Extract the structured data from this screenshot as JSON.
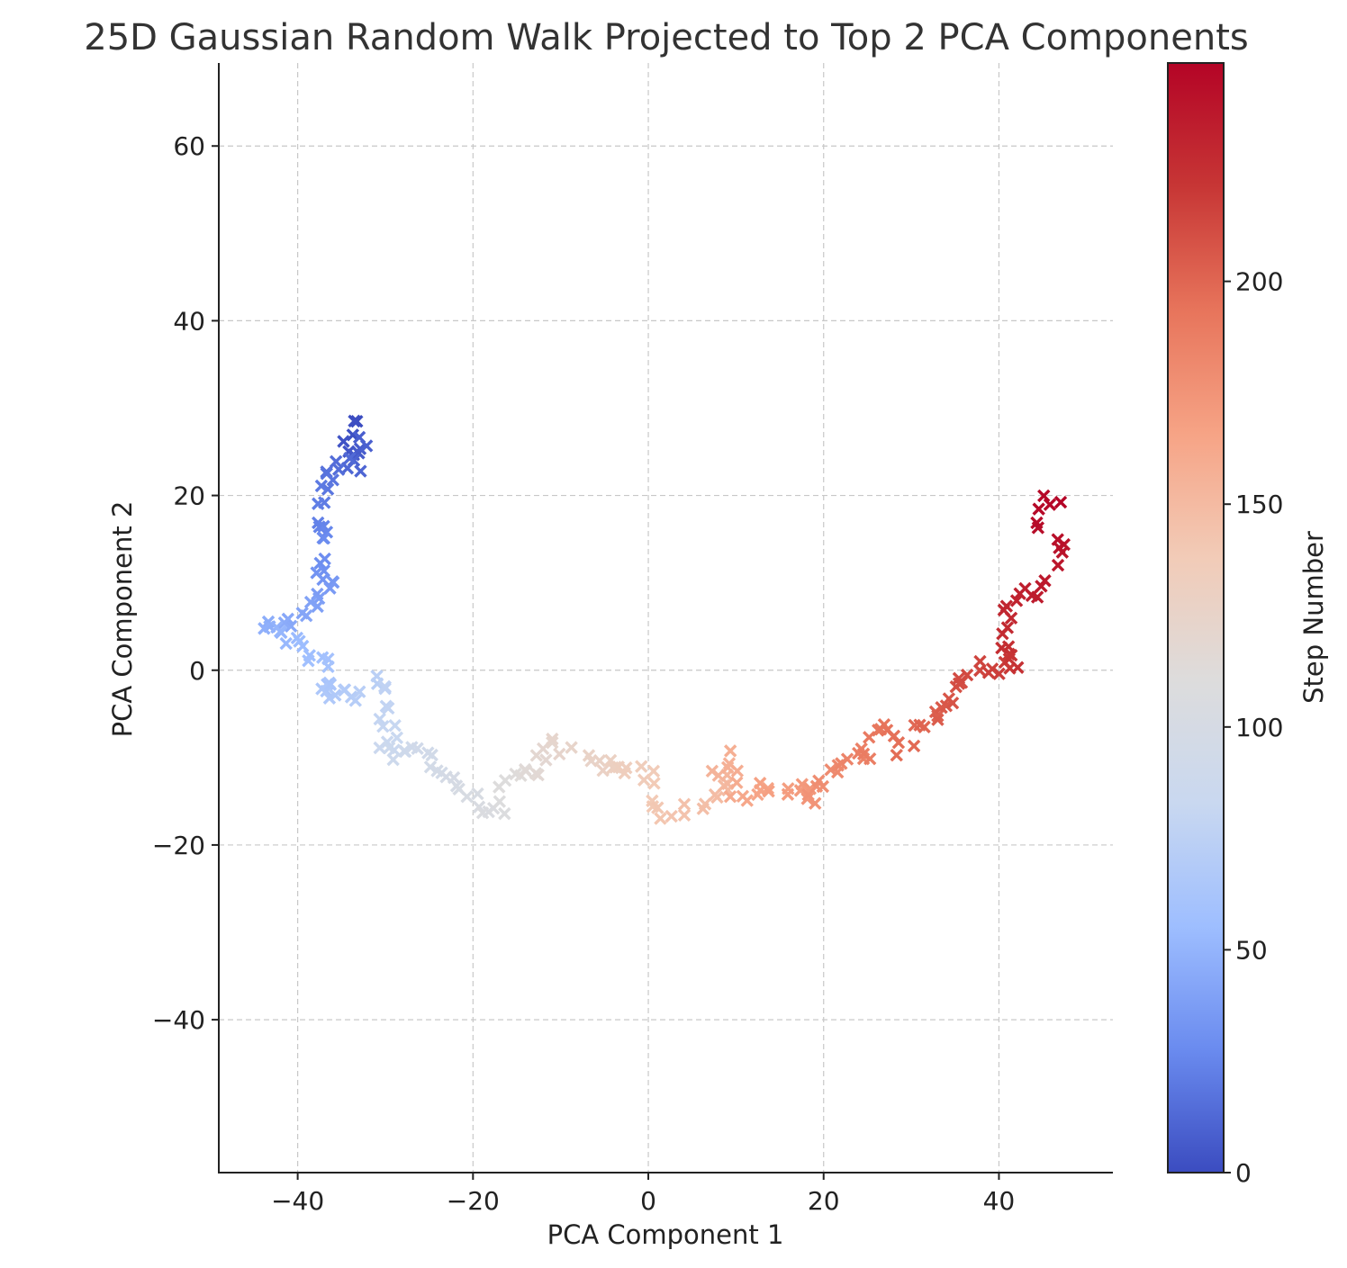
{
  "chart_data": {
    "type": "scatter",
    "title": "25D Gaussian Random Walk Projected to Top 2 PCA Components",
    "xlabel": "PCA Component 1",
    "ylabel": "PCA Component 2",
    "xlim": [
      -49,
      53
    ],
    "ylim": [
      -57.5,
      69.5
    ],
    "xticks": [
      -40,
      -20,
      0,
      20,
      40
    ],
    "yticks": [
      -40,
      -20,
      0,
      20,
      40,
      60
    ],
    "xtick_labels": [
      "−40",
      "−20",
      "0",
      "20",
      "40"
    ],
    "ytick_labels": [
      "−40",
      "−20",
      "0",
      "20",
      "40",
      "60"
    ],
    "grid": true,
    "marker": "x",
    "colormap": "coolwarm",
    "colorbar": {
      "label": "Step Number",
      "min": 0,
      "max": 249,
      "ticks": [
        0,
        50,
        100,
        150,
        200
      ],
      "tick_labels": [
        "0",
        "50",
        "100",
        "150",
        "200"
      ],
      "colors": [
        "#3b4cc0",
        "#6a8bef",
        "#9ebeff",
        "#c9d8f0",
        "#dddcdc",
        "#f2cbb7",
        "#f6a385",
        "#e7745b",
        "#c73635",
        "#b40426"
      ]
    },
    "anchors": [
      [
        0,
        -33.5,
        28.8
      ],
      [
        4,
        -34.5,
        24.5
      ],
      [
        8,
        -32.5,
        26.2
      ],
      [
        11,
        -33.2,
        23.0
      ],
      [
        14,
        -35.5,
        24.0
      ],
      [
        17,
        -36.5,
        22.5
      ],
      [
        20,
        -37.2,
        20.5
      ],
      [
        23,
        -38,
        17.5
      ],
      [
        26,
        -37,
        16.2
      ],
      [
        29,
        -36.8,
        13.5
      ],
      [
        32,
        -37.5,
        11.5
      ],
      [
        35,
        -36,
        9.5
      ],
      [
        38,
        -37.5,
        8.2
      ],
      [
        41,
        -39,
        6.5
      ],
      [
        44,
        -41,
        5.2
      ],
      [
        47,
        -44,
        5.0
      ],
      [
        50,
        -42,
        4.0
      ],
      [
        53,
        -40,
        3.2
      ],
      [
        56,
        -38.5,
        1.8
      ],
      [
        59,
        -37,
        0.5
      ],
      [
        62,
        -36,
        -1.5
      ],
      [
        65,
        -37.5,
        -2.8
      ],
      [
        68,
        -35,
        -2.2
      ],
      [
        71,
        -33,
        -3.2
      ],
      [
        74,
        -31,
        -1.2
      ],
      [
        77,
        -29.5,
        -2.5
      ],
      [
        80,
        -30,
        -5.0
      ],
      [
        83,
        -29,
        -7.5
      ],
      [
        86,
        -30,
        -9.5
      ],
      [
        89,
        -28,
        -10.0
      ],
      [
        92,
        -26,
        -9.0
      ],
      [
        95,
        -24.5,
        -10.5
      ],
      [
        98,
        -23,
        -12.0
      ],
      [
        101,
        -21.5,
        -13.5
      ],
      [
        104,
        -19.5,
        -15.5
      ],
      [
        107,
        -17.5,
        -16.5
      ],
      [
        110,
        -16.5,
        -14.0
      ],
      [
        113,
        -15,
        -12.0
      ],
      [
        116,
        -13,
        -12.0
      ],
      [
        119,
        -12,
        -10.0
      ],
      [
        122,
        -11,
        -8.5
      ],
      [
        125,
        -7,
        -10.0
      ],
      [
        128,
        -5.5,
        -11.0
      ],
      [
        131,
        -3.5,
        -10.5
      ],
      [
        134,
        -2,
        -11.5
      ],
      [
        137,
        1,
        -12.0
      ],
      [
        140,
        0,
        -15.5
      ],
      [
        143,
        2.5,
        -16.8
      ],
      [
        146,
        6,
        -15.8
      ],
      [
        149,
        8,
        -14.5
      ],
      [
        152,
        9,
        -13.0
      ],
      [
        155,
        8,
        -11.0
      ],
      [
        158,
        10,
        -10.0
      ],
      [
        161,
        9,
        -15.0
      ],
      [
        164,
        12,
        -14.0
      ],
      [
        167,
        13.5,
        -13.2
      ],
      [
        170,
        16,
        -13.5
      ],
      [
        173,
        18,
        -14.0
      ],
      [
        176,
        19,
        -14.8
      ],
      [
        179,
        20,
        -12.0
      ],
      [
        182,
        22,
        -10.5
      ],
      [
        185,
        24,
        -9.5
      ],
      [
        188,
        25,
        -10.0
      ],
      [
        191,
        26,
        -7.0
      ],
      [
        194,
        28,
        -6.5
      ],
      [
        197,
        29,
        -9.0
      ],
      [
        200,
        31,
        -6.0
      ],
      [
        203,
        33,
        -5.5
      ],
      [
        206,
        34,
        -4.0
      ],
      [
        209,
        35,
        -2.5
      ],
      [
        212,
        36,
        -1.0
      ],
      [
        215,
        38,
        0.5
      ],
      [
        218,
        39.5,
        -0.5
      ],
      [
        221,
        41,
        1.5
      ],
      [
        224,
        42.5,
        1.0
      ],
      [
        227,
        40,
        4.5
      ],
      [
        230,
        41,
        7.0
      ],
      [
        233,
        42,
        8.5
      ],
      [
        236,
        44,
        9.0
      ],
      [
        239,
        46,
        12.0
      ],
      [
        241,
        47.5,
        14.0
      ],
      [
        243,
        46,
        15.5
      ],
      [
        245,
        44.5,
        17.5
      ],
      [
        247,
        45,
        19.5
      ],
      [
        249,
        46.5,
        20.0
      ]
    ]
  }
}
